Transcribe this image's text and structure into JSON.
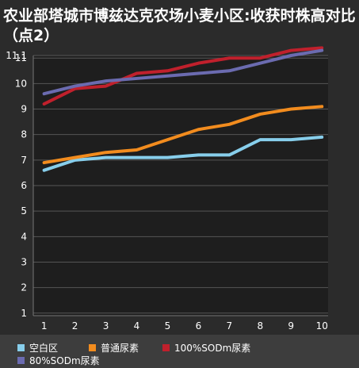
{
  "title": "农业部塔城市博兹达克农场小麦小区:收获时株高对比（点2）",
  "chart_data": {
    "type": "line",
    "title": "农业部塔城市博兹达克农场小麦小区:收获时株高对比（点2）",
    "xlabel": "",
    "ylabel": "",
    "x": [
      1,
      2,
      3,
      4,
      5,
      6,
      7,
      8,
      9,
      10
    ],
    "ylim": [
      0.9,
      11.1
    ],
    "yticks": [
      "11.1",
      "11",
      "10",
      "9",
      "8",
      "7",
      "6",
      "5",
      "4",
      "3",
      "2",
      "1"
    ],
    "ytick_values": [
      11.1,
      11,
      10,
      9,
      8,
      7,
      6,
      5,
      4,
      3,
      2,
      1
    ],
    "xticks": [
      "1",
      "2",
      "3",
      "4",
      "5",
      "6",
      "7",
      "8",
      "9",
      "10"
    ],
    "grid": true,
    "legend_position": "bottom",
    "series": [
      {
        "name": "空白区",
        "color": "#87ceeb",
        "values": [
          6.6,
          7.0,
          7.1,
          7.1,
          7.1,
          7.2,
          7.2,
          7.8,
          7.8,
          7.9
        ]
      },
      {
        "name": "普通尿素",
        "color": "#f28c1e",
        "values": [
          6.9,
          7.1,
          7.3,
          7.4,
          7.8,
          8.2,
          8.4,
          8.8,
          9.0,
          9.1
        ]
      },
      {
        "name": "100%SODm尿素",
        "color": "#c0202c",
        "values": [
          9.2,
          9.8,
          9.9,
          10.4,
          10.5,
          10.8,
          11.0,
          11.0,
          11.3,
          11.4
        ]
      },
      {
        "name": "80%SODm尿素",
        "color": "#6b6bb0",
        "values": [
          9.6,
          9.9,
          10.1,
          10.2,
          10.3,
          10.4,
          10.5,
          10.8,
          11.1,
          11.3
        ]
      }
    ]
  }
}
